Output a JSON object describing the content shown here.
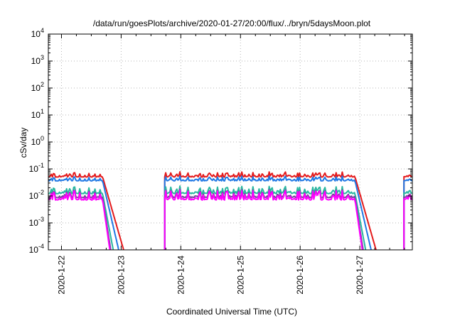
{
  "chart_data": {
    "type": "line",
    "title": "/data/run/goesPlots/archive/2020-01-27/20:00/flux/../bryn/5daysMoon.plot",
    "xlabel": "Coordinated Universal Time (UTC)",
    "ylabel": "cSv/day",
    "y_scale": "log",
    "ylim": [
      0.0001,
      10000
    ],
    "xlim": [
      -0.22,
      5.88
    ],
    "x_origin": "2020-01-22",
    "grid": true,
    "y_ticks": [
      {
        "value": 0.0001,
        "base": "10",
        "exp": "-4"
      },
      {
        "value": 0.001,
        "base": "10",
        "exp": "-3"
      },
      {
        "value": 0.01,
        "base": "10",
        "exp": "-2"
      },
      {
        "value": 0.1,
        "base": "10",
        "exp": "-1"
      },
      {
        "value": 1,
        "base": "10",
        "exp": "0"
      },
      {
        "value": 10,
        "base": "10",
        "exp": "1"
      },
      {
        "value": 100,
        "base": "10",
        "exp": "2"
      },
      {
        "value": 1000,
        "base": "10",
        "exp": "3"
      },
      {
        "value": 10000,
        "base": "10",
        "exp": "4"
      }
    ],
    "x_ticks": [
      {
        "value": 0,
        "label": "2020-1-22"
      },
      {
        "value": 1,
        "label": "2020-1-23"
      },
      {
        "value": 2,
        "label": "2020-1-24"
      },
      {
        "value": 3,
        "label": "2020-1-25"
      },
      {
        "value": 4,
        "label": "2020-1-26"
      },
      {
        "value": 5,
        "label": "2020-1-27"
      }
    ],
    "series": [
      {
        "color": "#e41a1c",
        "level": 0.05,
        "amp": 1.45,
        "decay": 0.13
      },
      {
        "color": "#1f78e4",
        "level": 0.036,
        "amp": 1.4,
        "decay": 0.105
      },
      {
        "color": "#2ab7a0",
        "level": 0.012,
        "amp": 1.8,
        "decay": 0.085
      },
      {
        "color": "#7b3fa0",
        "level": 0.0085,
        "amp": 1.9,
        "decay": 0.07
      },
      {
        "color": "#ff00ff",
        "level": 0.007,
        "amp": 2.2,
        "decay": 0.065
      }
    ],
    "segments": [
      {
        "start": -0.22,
        "end": 0.69
      },
      {
        "start": 1.73,
        "end": 4.92
      },
      {
        "start": 5.74,
        "end": 5.88
      }
    ]
  }
}
